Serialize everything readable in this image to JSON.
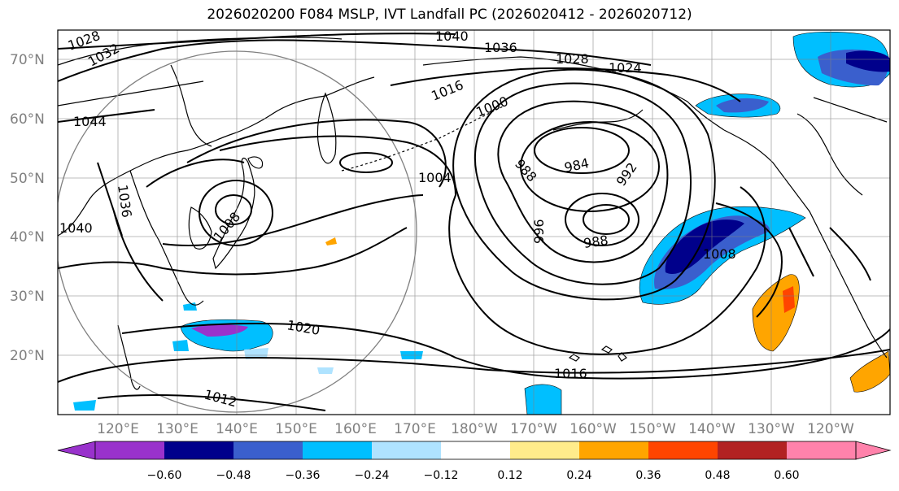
{
  "title": "2026020200 F084 MSLP, IVT Landfall PC (2026020412 - 2026020712)",
  "lat_labels": [
    "70°N",
    "60°N",
    "50°N",
    "40°N",
    "30°N",
    "20°N"
  ],
  "lon_labels": [
    "120°E",
    "130°E",
    "140°E",
    "150°E",
    "160°E",
    "170°E",
    "180°W",
    "170°W",
    "160°W",
    "150°W",
    "140°W",
    "130°W",
    "120°W"
  ],
  "isobar_labels": [
    "1040",
    "1036",
    "1028",
    "1024",
    "1032",
    "1028",
    "1044",
    "1016",
    "1000",
    "1004",
    "988",
    "984",
    "992",
    "996",
    "988",
    "1036",
    "1008",
    "1008",
    "1040",
    "1020",
    "1016",
    "1012"
  ],
  "colorbar": {
    "ticks": [
      "−0.60",
      "−0.48",
      "−0.36",
      "−0.24",
      "−0.12",
      "0.12",
      "0.24",
      "0.36",
      "0.48",
      "0.60"
    ],
    "colors": [
      "#9932cc",
      "#00008b",
      "#3a5fcd",
      "#00bfff",
      "#afe3ff",
      "#ffffff",
      "#ffec8b",
      "#ffa500",
      "#ff4500",
      "#b22222",
      "#ff82ab"
    ]
  },
  "colors": {
    "land_outline": "#000000",
    "isobar": "#000000",
    "grid": "#808080"
  }
}
